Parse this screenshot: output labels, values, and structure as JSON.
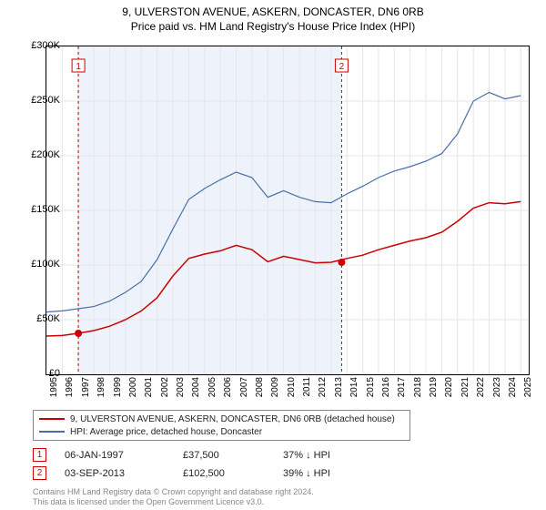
{
  "title1": "9, ULVERSTON AVENUE, ASKERN, DONCASTER, DN6 0RB",
  "title2": "Price paid vs. HM Land Registry's House Price Index (HPI)",
  "chart": {
    "type": "line",
    "background_color": "#ffffff",
    "grid_color": "#e6e6e6",
    "border_color": "#000000",
    "xlim": [
      1995,
      2025.5
    ],
    "ylim": [
      0,
      300000
    ],
    "ytick_step": 50000,
    "ytick_format": "£K",
    "yticks": [
      {
        "v": 0,
        "label": "£0"
      },
      {
        "v": 50000,
        "label": "£50K"
      },
      {
        "v": 100000,
        "label": "£100K"
      },
      {
        "v": 150000,
        "label": "£150K"
      },
      {
        "v": 200000,
        "label": "£200K"
      },
      {
        "v": 250000,
        "label": "£250K"
      },
      {
        "v": 300000,
        "label": "£300K"
      }
    ],
    "xticks": [
      1995,
      1996,
      1997,
      1998,
      1999,
      2000,
      2001,
      2002,
      2003,
      2004,
      2005,
      2006,
      2007,
      2008,
      2009,
      2010,
      2011,
      2012,
      2013,
      2014,
      2015,
      2016,
      2017,
      2018,
      2019,
      2020,
      2021,
      2022,
      2023,
      2024,
      2025
    ],
    "series": [
      {
        "name": "property",
        "label": "9, ULVERSTON AVENUE, ASKERN, DONCASTER, DN6 0RB (detached house)",
        "color": "#cc0000",
        "line_width": 1.5,
        "data": [
          [
            1995,
            35000
          ],
          [
            1996,
            35500
          ],
          [
            1997,
            37500
          ],
          [
            1998,
            40000
          ],
          [
            1999,
            44000
          ],
          [
            2000,
            50000
          ],
          [
            2001,
            58000
          ],
          [
            2002,
            70000
          ],
          [
            2003,
            90000
          ],
          [
            2004,
            106000
          ],
          [
            2005,
            110000
          ],
          [
            2006,
            113000
          ],
          [
            2007,
            118000
          ],
          [
            2008,
            114000
          ],
          [
            2009,
            103000
          ],
          [
            2010,
            108000
          ],
          [
            2011,
            105000
          ],
          [
            2012,
            102000
          ],
          [
            2013,
            102500
          ],
          [
            2014,
            106000
          ],
          [
            2015,
            109000
          ],
          [
            2016,
            114000
          ],
          [
            2017,
            118000
          ],
          [
            2018,
            122000
          ],
          [
            2019,
            125000
          ],
          [
            2020,
            130000
          ],
          [
            2021,
            140000
          ],
          [
            2022,
            152000
          ],
          [
            2023,
            157000
          ],
          [
            2024,
            156000
          ],
          [
            2025,
            158000
          ]
        ]
      },
      {
        "name": "hpi",
        "label": "HPI: Average price, detached house, Doncaster",
        "color": "#4a6ea9",
        "line_width": 1.2,
        "data": [
          [
            1995,
            57000
          ],
          [
            1996,
            58000
          ],
          [
            1997,
            60000
          ],
          [
            1998,
            62000
          ],
          [
            1999,
            67000
          ],
          [
            2000,
            75000
          ],
          [
            2001,
            85000
          ],
          [
            2002,
            105000
          ],
          [
            2003,
            133000
          ],
          [
            2004,
            160000
          ],
          [
            2005,
            170000
          ],
          [
            2006,
            178000
          ],
          [
            2007,
            185000
          ],
          [
            2008,
            180000
          ],
          [
            2009,
            162000
          ],
          [
            2010,
            168000
          ],
          [
            2011,
            162000
          ],
          [
            2012,
            158000
          ],
          [
            2013,
            157000
          ],
          [
            2014,
            165000
          ],
          [
            2015,
            172000
          ],
          [
            2016,
            180000
          ],
          [
            2017,
            186000
          ],
          [
            2018,
            190000
          ],
          [
            2019,
            195000
          ],
          [
            2020,
            202000
          ],
          [
            2021,
            220000
          ],
          [
            2022,
            250000
          ],
          [
            2023,
            258000
          ],
          [
            2024,
            252000
          ],
          [
            2025,
            255000
          ]
        ]
      }
    ],
    "transaction_markers": [
      {
        "n": "1",
        "x": 1997.02,
        "y": 37500,
        "line_color": "#cc0000",
        "shade_until": 2013.67
      },
      {
        "n": "2",
        "x": 2013.67,
        "y": 102500,
        "line_color": "#cc0000",
        "shade_until": null
      }
    ],
    "shade_color": "#eef3fb",
    "marker_box_color": "#cc0000",
    "marker_dot_color": "#cc0000",
    "marker_label_top_offset": 14
  },
  "legend": {
    "border_color": "#888888"
  },
  "annotations": [
    {
      "n": "1",
      "date": "06-JAN-1997",
      "price": "£37,500",
      "delta": "37% ↓ HPI"
    },
    {
      "n": "2",
      "date": "03-SEP-2013",
      "price": "£102,500",
      "delta": "39% ↓ HPI"
    }
  ],
  "footer_line1": "Contains HM Land Registry data © Crown copyright and database right 2024.",
  "footer_line2": "This data is licensed under the Open Government Licence v3.0."
}
